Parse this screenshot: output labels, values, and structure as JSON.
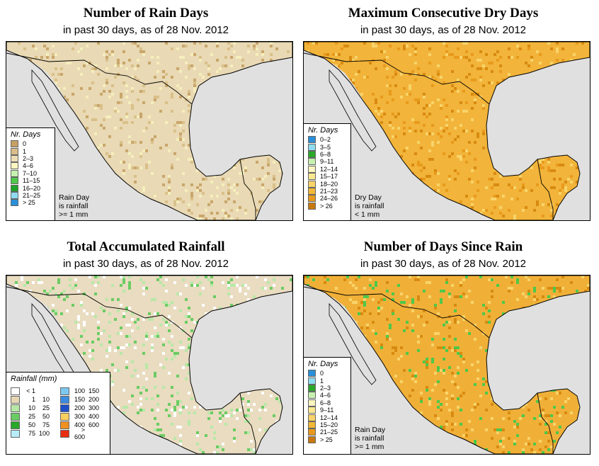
{
  "panels": [
    {
      "title": "Number of Rain Days",
      "subtitle": "in past 30 days, as of  28 Nov. 2012",
      "base_color": "#e9d9b4",
      "speckle_colors": [
        "#c9a66b",
        "#d9c08a",
        "#f5eebd"
      ],
      "legend": {
        "title": "Nr. Days",
        "items": [
          {
            "label": "0",
            "color": "#c7a063"
          },
          {
            "label": "1",
            "color": "#d9bd88"
          },
          {
            "label": "2–3",
            "color": "#ecdcb4"
          },
          {
            "label": "4–6",
            "color": "#fbf6c0"
          },
          {
            "label": "7–10",
            "color": "#c8f0b0"
          },
          {
            "label": "11–15",
            "color": "#4ec84a"
          },
          {
            "label": "16–20",
            "color": "#1ea22a"
          },
          {
            "label": "21–25",
            "color": "#8fdcf0"
          },
          {
            "label": "> 25",
            "color": "#2a8fd8"
          }
        ]
      },
      "note": [
        "Rain Day",
        "is rainfall",
        ">= 1 mm"
      ]
    },
    {
      "title": "Maximum Consecutive Dry Days",
      "subtitle": "in past 30 days, as of  28 Nov. 2012",
      "base_color": "#f2b43a",
      "speckle_colors": [
        "#e89a1c",
        "#f8d46a",
        "#d88a10"
      ],
      "legend": {
        "title": "Nr. Days",
        "items": [
          {
            "label": "0–2",
            "color": "#2a8fd8"
          },
          {
            "label": "3–5",
            "color": "#8fdcf0"
          },
          {
            "label": "6–8",
            "color": "#2aa82a"
          },
          {
            "label": "9–11",
            "color": "#c8f0b0"
          },
          {
            "label": "12–14",
            "color": "#fbf6c0"
          },
          {
            "label": "15–17",
            "color": "#fbe890"
          },
          {
            "label": "18–20",
            "color": "#f8d46a"
          },
          {
            "label": "21–23",
            "color": "#f4b838"
          },
          {
            "label": "24–26",
            "color": "#e89a1c"
          },
          {
            "label": "> 26",
            "color": "#c87a10"
          }
        ]
      },
      "note": [
        "Dry Day",
        "is rainfall",
        "< 1 mm"
      ]
    },
    {
      "title": "Total Accumulated Rainfall",
      "subtitle": "in past 30 days, as of  28 Nov. 2012",
      "base_color": "#e9dcc0",
      "speckle_colors": [
        "#ffffff",
        "#b8e8a8",
        "#6ccc64"
      ],
      "rain_legend": {
        "title": "Rainfall (mm)",
        "left": [
          {
            "lo": "< 1",
            "hi": "",
            "color": "#ffffff"
          },
          {
            "lo": "1",
            "hi": "10",
            "color": "#e6d6b4"
          },
          {
            "lo": "10",
            "hi": "25",
            "color": "#b8e8a8"
          },
          {
            "lo": "25",
            "hi": "50",
            "color": "#6ccc64"
          },
          {
            "lo": "50",
            "hi": "75",
            "color": "#2aa82a"
          },
          {
            "lo": "75",
            "hi": "100",
            "color": "#b8ecf8"
          }
        ],
        "right": [
          {
            "lo": "100",
            "hi": "150",
            "color": "#7cc8f0"
          },
          {
            "lo": "150",
            "hi": "200",
            "color": "#3c8ce0"
          },
          {
            "lo": "200",
            "hi": "300",
            "color": "#2050c8"
          },
          {
            "lo": "300",
            "hi": "400",
            "color": "#f8d060"
          },
          {
            "lo": "400",
            "hi": "600",
            "color": "#f09020"
          },
          {
            "lo": "> 600",
            "hi": "",
            "color": "#e83010"
          }
        ]
      }
    },
    {
      "title": "Number of Days Since Rain",
      "subtitle": "in past 30 days, as of  28 Nov. 2012",
      "base_color": "#f0b038",
      "speckle_colors": [
        "#d88a10",
        "#f8d46a",
        "#4ec84a"
      ],
      "legend": {
        "title": "Nr. Days",
        "items": [
          {
            "label": "0",
            "color": "#2a8fd8"
          },
          {
            "label": "1",
            "color": "#8fdcf0"
          },
          {
            "label": "2–3",
            "color": "#2aa82a"
          },
          {
            "label": "4–6",
            "color": "#c8f0b0"
          },
          {
            "label": "6–8",
            "color": "#fbf6c0"
          },
          {
            "label": "9–11",
            "color": "#fbe890"
          },
          {
            "label": "12–14",
            "color": "#f8d46a"
          },
          {
            "label": "15–20",
            "color": "#f4b838"
          },
          {
            "label": "21–25",
            "color": "#e89a1c"
          },
          {
            "label": "> 25",
            "color": "#c87a10"
          }
        ]
      },
      "note": [
        "Rain Day",
        "is rainfall",
        ">= 1 mm"
      ]
    }
  ],
  "colors": {
    "ocean": "#e0e0e0",
    "border": "#000000"
  }
}
